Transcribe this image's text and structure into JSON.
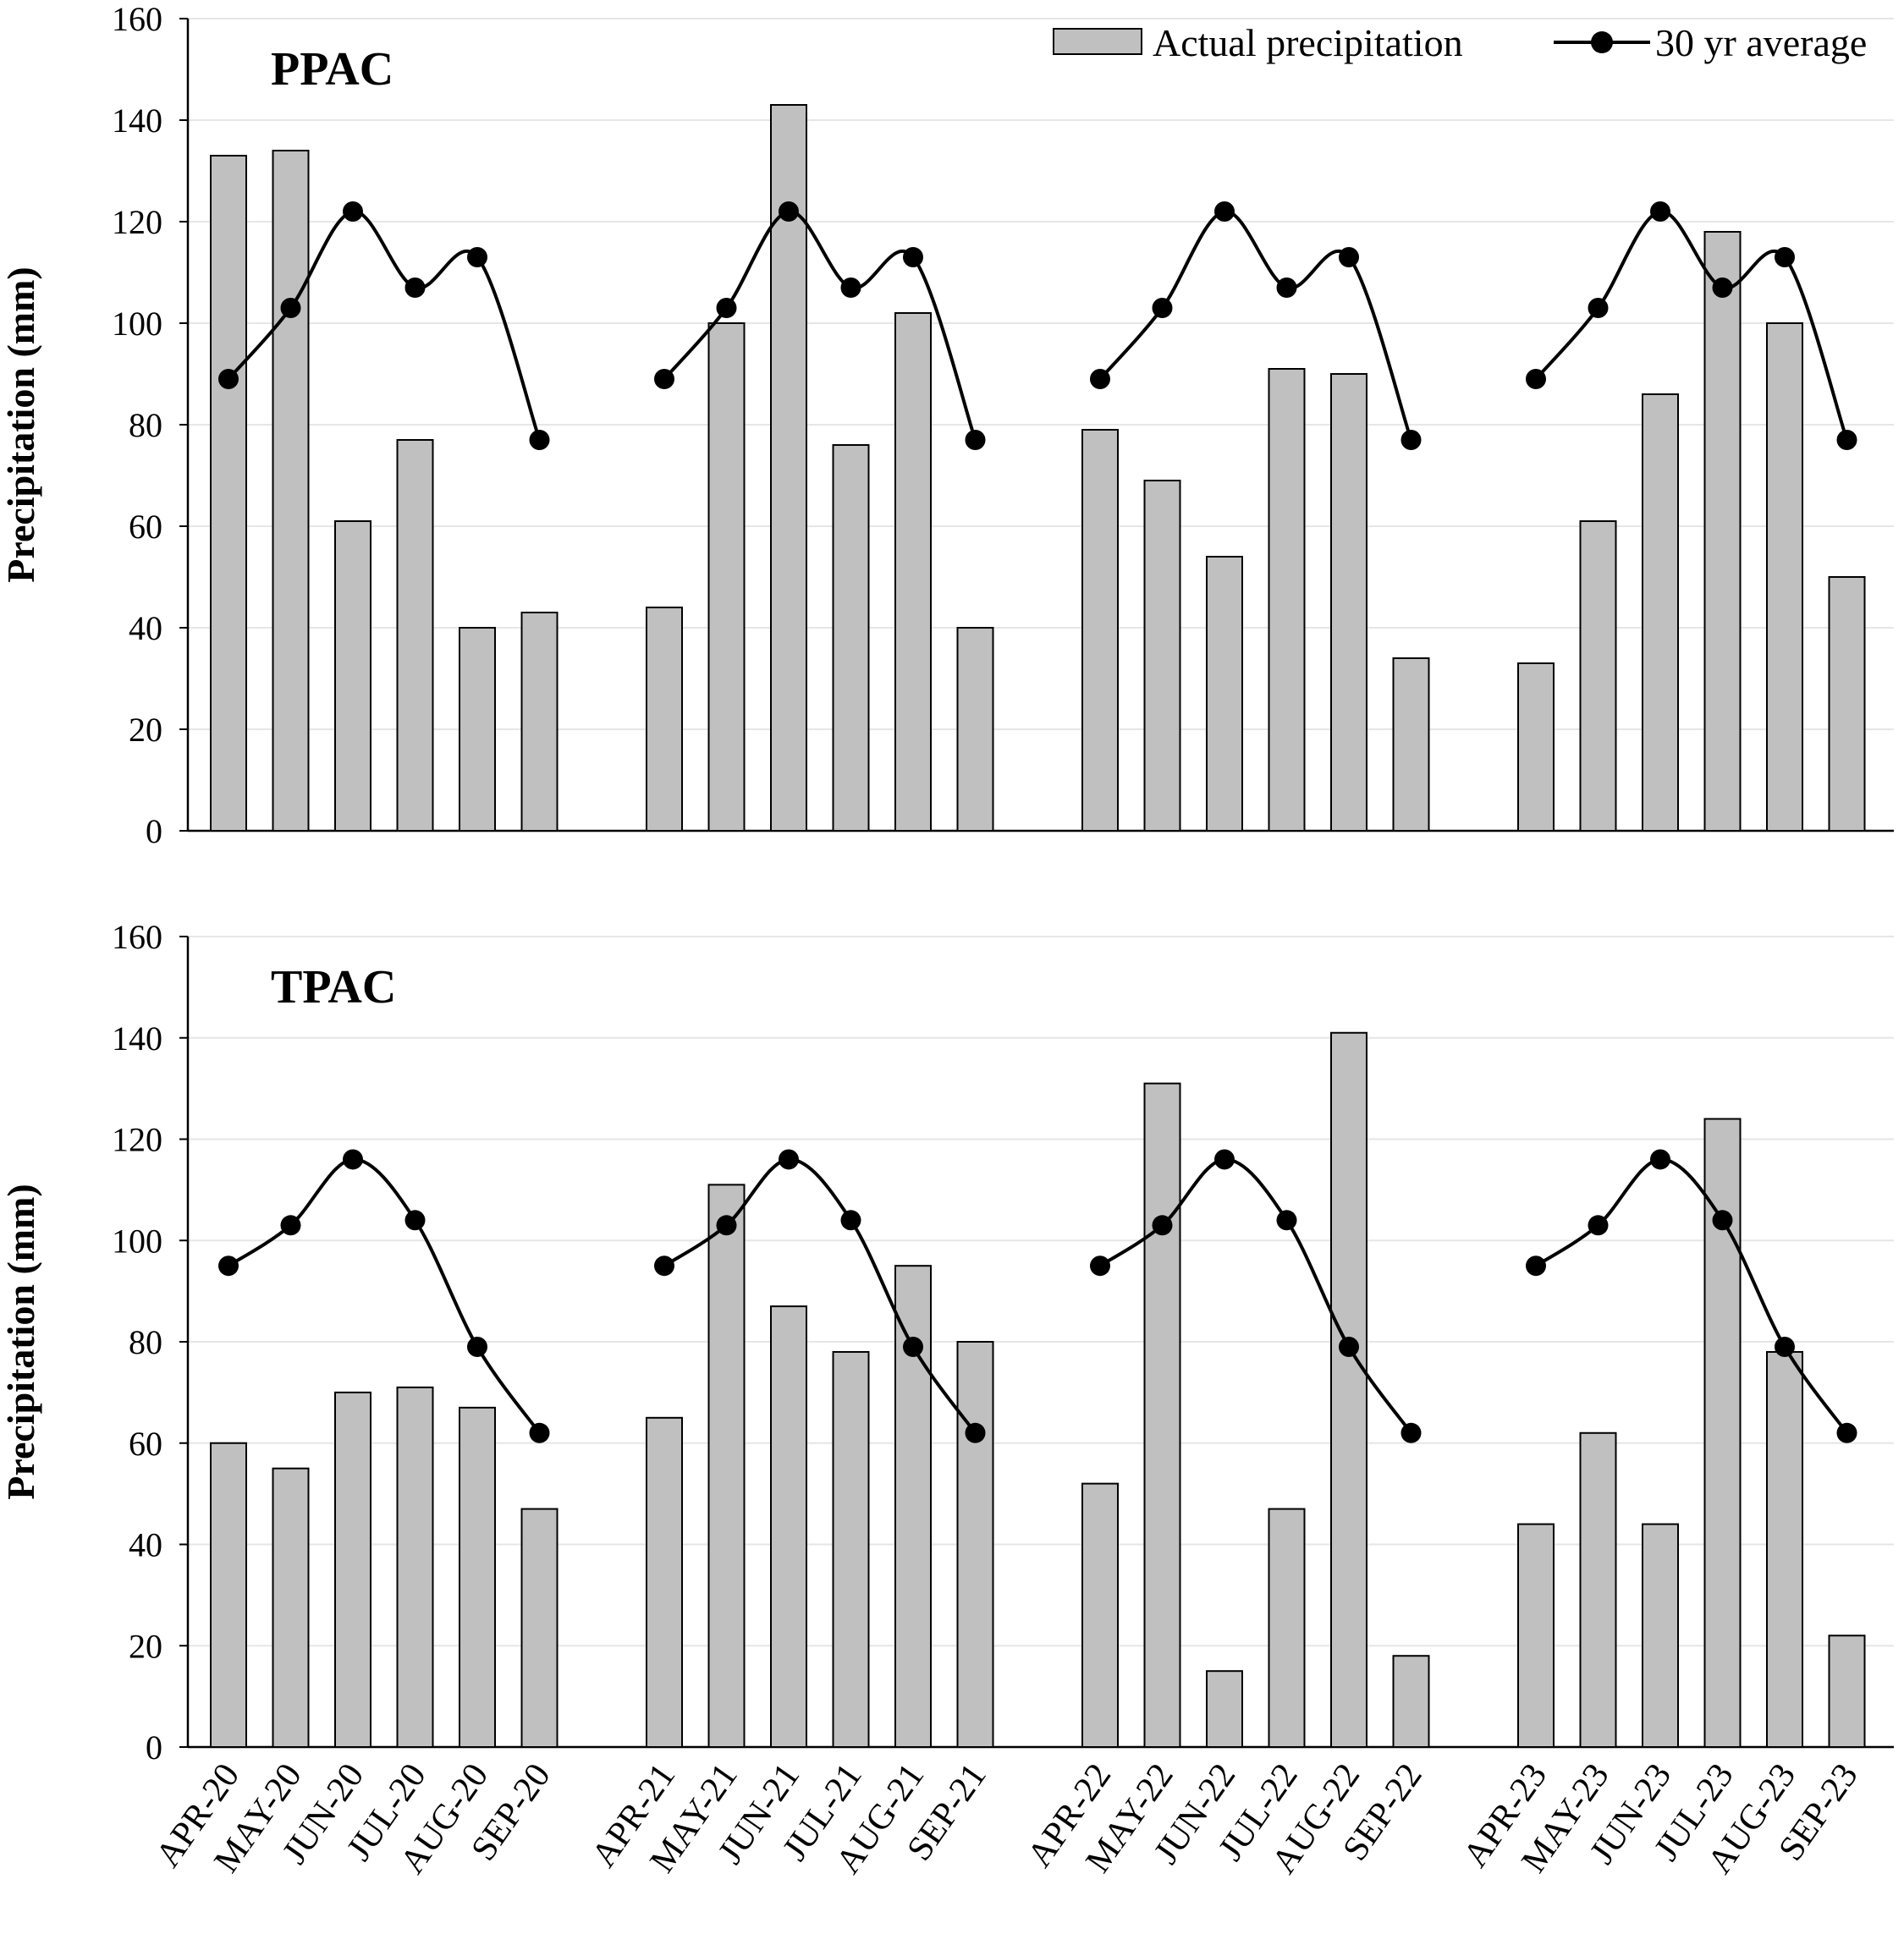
{
  "chart_data": [
    {
      "type": "bar",
      "panel_title": "PPAC",
      "ylabel": "Precipitation (mm)",
      "ylim": [
        0,
        160
      ],
      "yticks": [
        0,
        20,
        40,
        60,
        80,
        100,
        120,
        140,
        160
      ],
      "grid": true,
      "legend": "top-right",
      "groups": [
        {
          "categories": [
            "APR-20",
            "MAY-20",
            "JUN-20",
            "JUL-20",
            "AUG-20",
            "SEP-20"
          ],
          "actual": [
            133,
            134,
            61,
            77,
            40,
            43
          ],
          "average": [
            89,
            103,
            122,
            107,
            113,
            77
          ]
        },
        {
          "categories": [
            "APR-21",
            "MAY-21",
            "JUN-21",
            "JUL-21",
            "AUG-21",
            "SEP-21"
          ],
          "actual": [
            44,
            100,
            143,
            76,
            102,
            40
          ],
          "average": [
            89,
            103,
            122,
            107,
            113,
            77
          ]
        },
        {
          "categories": [
            "APR-22",
            "MAY-22",
            "JUN-22",
            "JUL-22",
            "AUG-22",
            "SEP-22"
          ],
          "actual": [
            79,
            69,
            54,
            91,
            90,
            34
          ],
          "average": [
            89,
            103,
            122,
            107,
            113,
            77
          ]
        },
        {
          "categories": [
            "APR-23",
            "MAY-23",
            "JUN-23",
            "JUL-23",
            "AUG-23",
            "SEP-23"
          ],
          "actual": [
            33,
            61,
            86,
            118,
            100,
            50
          ],
          "average": [
            89,
            103,
            122,
            107,
            113,
            77
          ]
        }
      ]
    },
    {
      "type": "bar",
      "panel_title": "TPAC",
      "ylabel": "Precipitation (mm)",
      "ylim": [
        0,
        160
      ],
      "yticks": [
        0,
        20,
        40,
        60,
        80,
        100,
        120,
        140,
        160
      ],
      "grid": true,
      "groups": [
        {
          "categories": [
            "APR-20",
            "MAY-20",
            "JUN-20",
            "JUL-20",
            "AUG-20",
            "SEP-20"
          ],
          "actual": [
            60,
            55,
            70,
            71,
            67,
            47
          ],
          "average": [
            95,
            103,
            116,
            104,
            79,
            62
          ]
        },
        {
          "categories": [
            "APR-21",
            "MAY-21",
            "JUN-21",
            "JUL-21",
            "AUG-21",
            "SEP-21"
          ],
          "actual": [
            65,
            111,
            87,
            78,
            95,
            80
          ],
          "average": [
            95,
            103,
            116,
            104,
            79,
            62
          ]
        },
        {
          "categories": [
            "APR-22",
            "MAY-22",
            "JUN-22",
            "JUL-22",
            "AUG-22",
            "SEP-22"
          ],
          "actual": [
            52,
            131,
            15,
            47,
            141,
            18
          ],
          "average": [
            95,
            103,
            116,
            104,
            79,
            62
          ]
        },
        {
          "categories": [
            "APR-23",
            "MAY-23",
            "JUN-23",
            "JUL-23",
            "AUG-23",
            "SEP-23"
          ],
          "actual": [
            44,
            62,
            44,
            124,
            78,
            22
          ],
          "average": [
            95,
            103,
            116,
            104,
            79,
            62
          ]
        }
      ]
    }
  ],
  "legend": {
    "actual_label": "Actual precipitation",
    "average_label": "30 yr average"
  },
  "colors": {
    "bar_fill": "#c0c0c0",
    "bar_stroke": "#000000",
    "line": "#000000",
    "grid": "#e6e6e6"
  }
}
